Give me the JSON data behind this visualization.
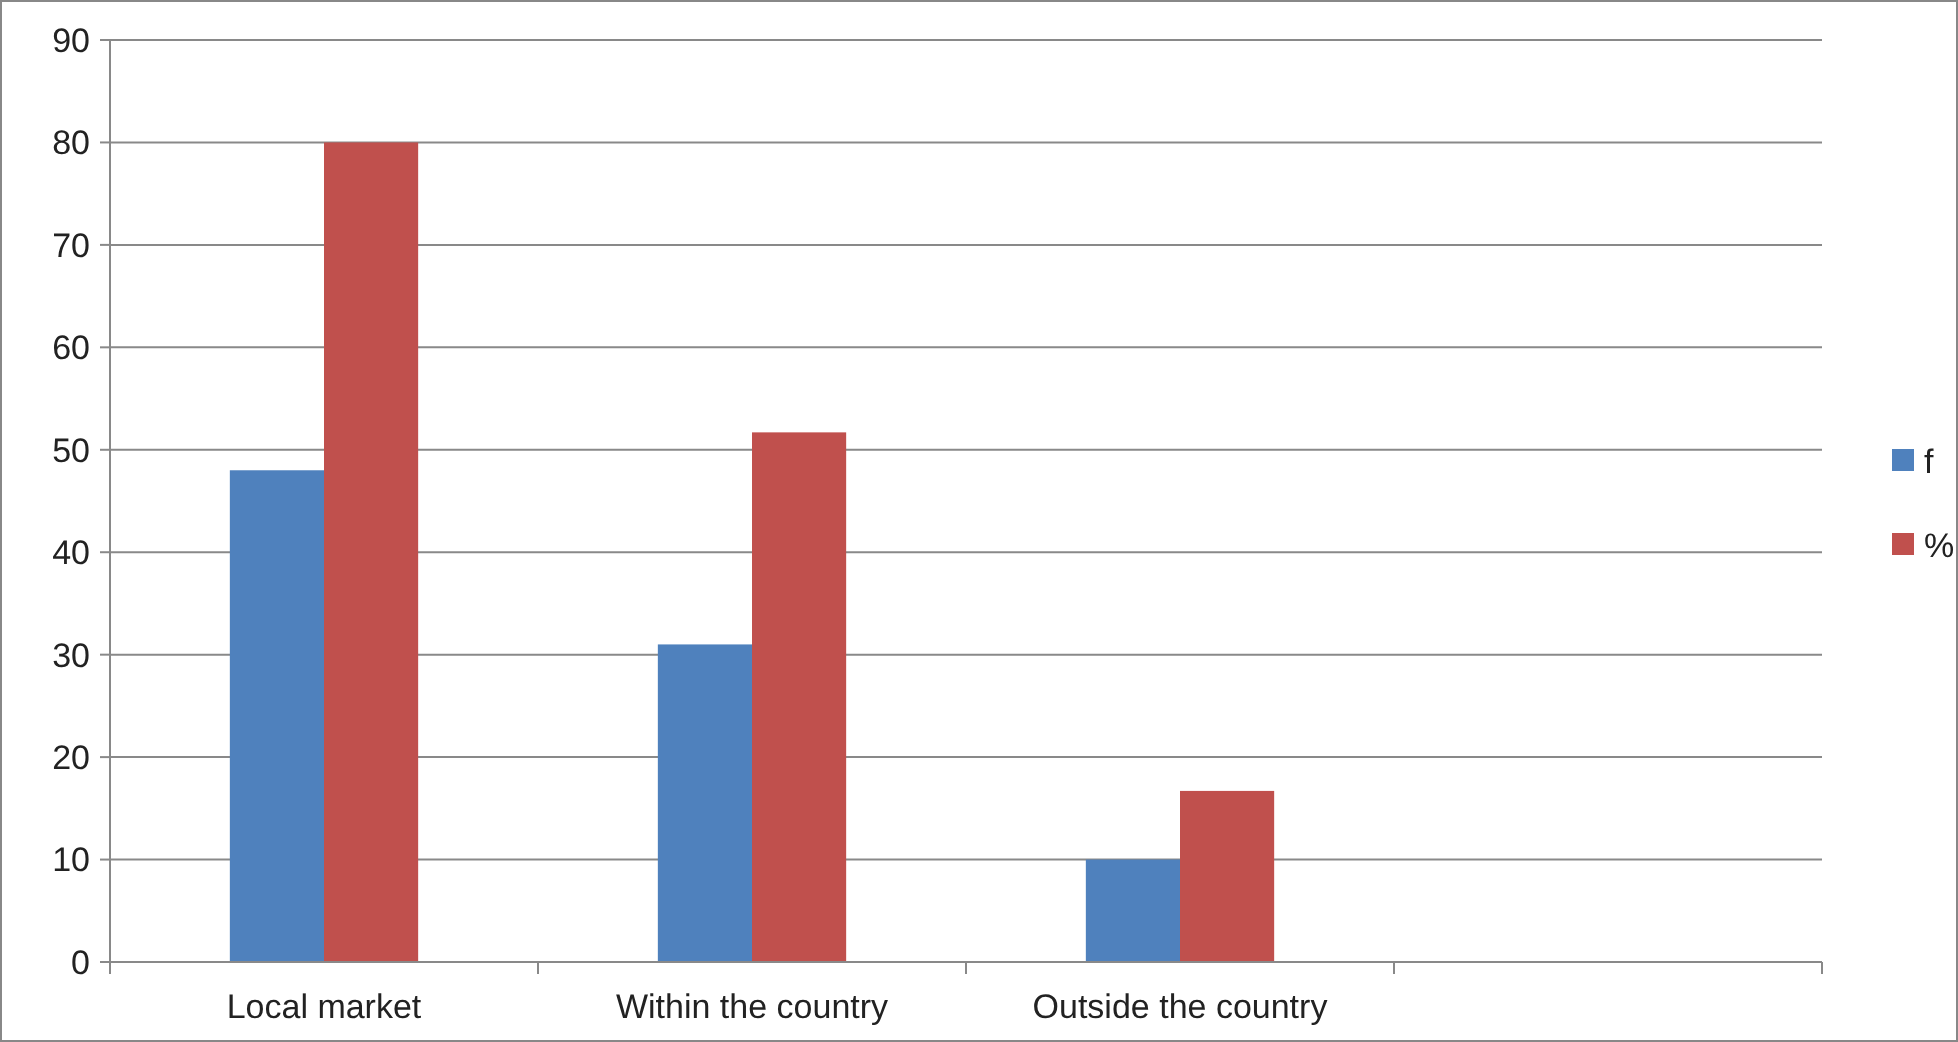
{
  "chart_data": {
    "type": "bar",
    "categories": [
      "Local market",
      "Within the country",
      "Outside the country",
      null
    ],
    "series": [
      {
        "name": "f",
        "color": "#4f81bd",
        "values": [
          48,
          31,
          10,
          null
        ]
      },
      {
        "name": "%",
        "color": "#c0504d",
        "values": [
          80,
          51.7,
          16.7,
          null
        ]
      }
    ],
    "ylim": [
      0,
      90
    ],
    "yticks": [
      0,
      10,
      20,
      30,
      40,
      50,
      60,
      70,
      80,
      90
    ],
    "grid": "y",
    "legend": "right"
  }
}
